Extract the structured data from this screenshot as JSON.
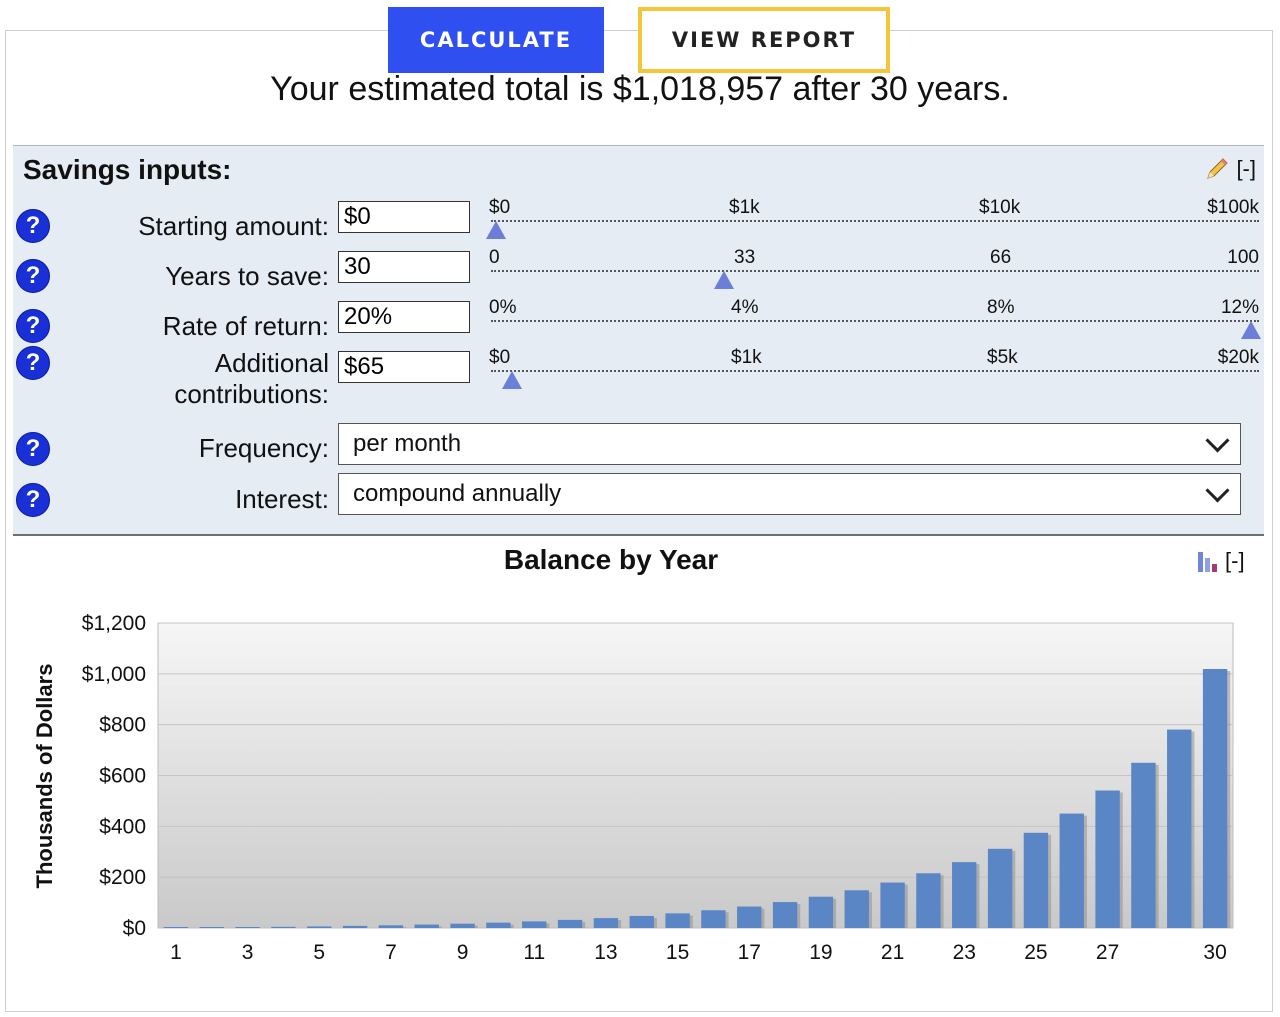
{
  "buttons": {
    "calculate": "CALCULATE",
    "view_report": "VIEW REPORT"
  },
  "summary": "Your estimated total is $1,018,957 after 30 years.",
  "inputs": {
    "title": "Savings inputs:",
    "collapse": "[-]",
    "help": "?",
    "rows": [
      {
        "label": "Starting amount:",
        "value": "$0",
        "ticks": [
          "$0",
          "$1k",
          "$10k",
          "$100k"
        ],
        "slider_position": 0.0
      },
      {
        "label": "Years to save:",
        "value": "30",
        "ticks": [
          "0",
          "33",
          "66",
          "100"
        ],
        "slider_position": 0.3
      },
      {
        "label": "Rate of return:",
        "value": "20%",
        "ticks": [
          "0%",
          "4%",
          "8%",
          "12%"
        ],
        "slider_position": 1.0
      },
      {
        "label_line1": "Additional",
        "label_line2": "contributions:",
        "value": "$65",
        "ticks": [
          "$0",
          "$1k",
          "$5k",
          "$20k"
        ],
        "slider_position": 0.02
      }
    ],
    "frequency": {
      "label": "Frequency:",
      "value": "per month"
    },
    "interest": {
      "label": "Interest:",
      "value": "compound annually"
    }
  },
  "chart": {
    "collapse": "[-]"
  },
  "chart_data": {
    "type": "bar",
    "title": "Balance by Year",
    "ylabel": "Thousands of Dollars",
    "ylim": [
      0,
      1200
    ],
    "yticks": [
      "$0",
      "$200",
      "$400",
      "$600",
      "$800",
      "$1,000",
      "$1,200"
    ],
    "x": [
      1,
      2,
      3,
      4,
      5,
      6,
      7,
      8,
      9,
      10,
      11,
      12,
      13,
      14,
      15,
      16,
      17,
      18,
      19,
      20,
      21,
      22,
      23,
      24,
      25,
      26,
      27,
      28,
      29,
      30
    ],
    "xtick_labels": [
      "1",
      "3",
      "5",
      "7",
      "9",
      "11",
      "13",
      "15",
      "17",
      "19",
      "21",
      "23",
      "25",
      "27",
      "30"
    ],
    "values": [
      0.8,
      1.8,
      3.0,
      4.5,
      6.2,
      8.2,
      10.6,
      13.5,
      17.0,
      21.1,
      26.0,
      31.9,
      39.0,
      47.4,
      57.6,
      69.8,
      84.4,
      102.0,
      123.0,
      148.4,
      178.8,
      215.3,
      259.1,
      311.6,
      374.6,
      450.2,
      541.0,
      650.0,
      780.7,
      1019.0
    ],
    "bar_color": "#5a86c5",
    "grid": true
  }
}
